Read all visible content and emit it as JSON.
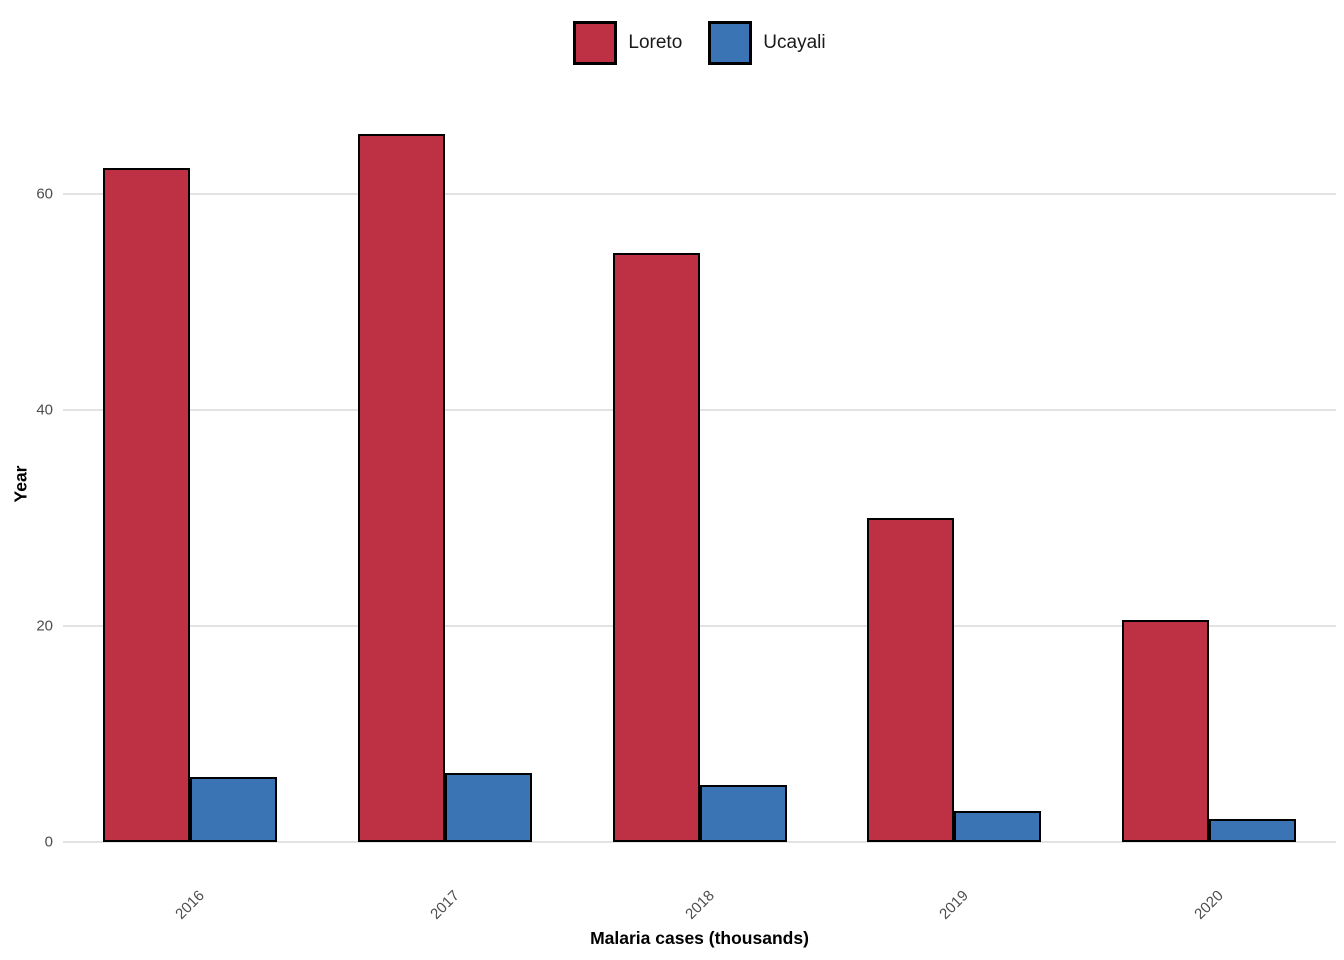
{
  "chart_data": {
    "type": "bar",
    "title": "",
    "categories": [
      "2016",
      "2017",
      "2018",
      "2019",
      "2020"
    ],
    "series": [
      {
        "name": "Loreto",
        "color": "#BE3144",
        "values": [
          62.4,
          65.6,
          54.5,
          30.0,
          20.6
        ]
      },
      {
        "name": "Ucayali",
        "color": "#3B74B5",
        "values": [
          6.0,
          6.4,
          5.3,
          2.9,
          2.1
        ]
      }
    ],
    "xlabel": "Malaria cases (thousands)",
    "ylabel": "Year",
    "y_ticks": [
      0,
      20,
      40,
      60
    ],
    "ylim": [
      0,
      70
    ],
    "grid": "horizontal-major-only",
    "gridline_color": "#E3E3E3",
    "bar_outline_color": "#000000",
    "tick_label_color": "#4D4D4D",
    "x_tick_rotation_deg": 45,
    "legend_position": "top-center",
    "background": "#ffffff"
  },
  "legend": {
    "items": [
      {
        "label": "Loreto",
        "color": "#BE3144"
      },
      {
        "label": "Ucayali",
        "color": "#3B74B5"
      }
    ]
  },
  "axes": {
    "x_title": "Malaria cases (thousands)",
    "y_title": "Year"
  }
}
